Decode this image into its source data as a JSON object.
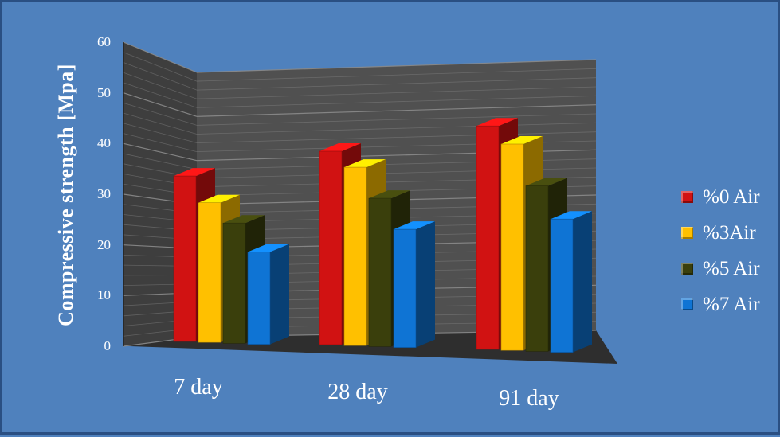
{
  "chart_data": {
    "type": "bar",
    "title": "",
    "xlabel": "",
    "ylabel": "Compressive  strength  [Mpa]",
    "categories": [
      "7 day",
      "28 day",
      "91 day"
    ],
    "series": [
      {
        "name": "%0 Air",
        "values": [
          38.5,
          45,
          52
        ],
        "color": "#d11212"
      },
      {
        "name": "%3Air",
        "values": [
          32.5,
          41.5,
          48
        ],
        "color": "#ffc000"
      },
      {
        "name": "%5 Air",
        "values": [
          28,
          34.5,
          38.5
        ],
        "color": "#3a3f0c"
      },
      {
        "name": "%7 Air",
        "values": [
          21.5,
          27.5,
          31
        ],
        "color": "#0f74d4"
      }
    ],
    "ylim": [
      0,
      60
    ],
    "yticks": [
      "0",
      "10",
      "20",
      "30",
      "40",
      "50",
      "60"
    ],
    "grid": true,
    "legend": "right",
    "colors": {
      "background": "#4f81bd",
      "wall": "#505050",
      "floor": "#2e2e2e",
      "gridline": "#8a8a8a"
    }
  }
}
